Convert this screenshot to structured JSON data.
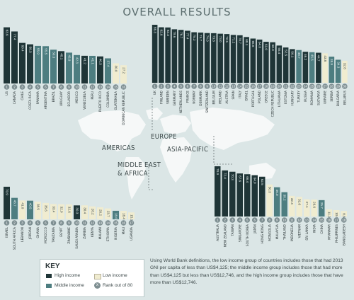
{
  "title": "OVERALL RESULTS",
  "colors": {
    "high": "#1f3537",
    "middle": "#4d7d80",
    "low": "#f0ecd0",
    "rank_circle": "#7e8f92",
    "map": "#ffffff"
  },
  "regions": {
    "americas": "AMERICAS",
    "europe": "EUROPE",
    "asia_pacific": "ASIA-PACIFIC",
    "mea_line1": "MIDDLE EAST",
    "mea_line2": "& AFRICA"
  },
  "legend": {
    "title": "KEY",
    "high": "High income",
    "middle": "Middle income",
    "low": "Low income",
    "rank": "Rank out of 80",
    "rank_symbol": "x"
  },
  "footnote": "Using World Bank definitions, the low income group of countries includes those that had 2013 GNI per capita of less than US$4,125; the middle income group includes those that had more than US$4,125 but less than US$12,746, and the high income group includes those that have more than US$12,746.",
  "chart_data": [
    {
      "type": "bar",
      "region": "Americas",
      "categories": [
        "US",
        "CANADA",
        "CHILE",
        "COSTA RICA",
        "PANAMA",
        "ARGENTINA",
        "BRAZIL",
        "URUGUAY",
        "ECUADOR",
        "MEXICO",
        "VENEZUELA",
        "PERU",
        "PUERTO RICO",
        "COLOMBIA",
        "GUATEMALA",
        "DOMINICAN REPUBLIC"
      ],
      "values": [
        83.6,
        77.4,
        60.4,
        58.3,
        55.9,
        55.5,
        50.3,
        48.1,
        45.9,
        42.3,
        41.2,
        41.1,
        40.3,
        37.4,
        30.0,
        27.2
      ],
      "ranks": [
        1,
        2,
        3,
        4,
        5,
        6,
        7,
        8,
        9,
        10,
        11,
        12,
        13,
        14,
        15,
        16
      ],
      "groups": [
        "high",
        "high",
        "high",
        "high",
        "middle",
        "middle",
        "middle",
        "high",
        "middle",
        "middle",
        "high",
        "middle",
        "high",
        "middle",
        "low",
        "low"
      ],
      "ylim": [
        0,
        100
      ]
    },
    {
      "type": "bar",
      "region": "Europe",
      "categories": [
        "UK",
        "FINLAND",
        "SWEDEN",
        "GERMANY",
        "NETHERLANDS",
        "FRANCE",
        "NORWAY",
        "DENMARK",
        "SWITZERLAND",
        "BELGIUM",
        "IRELAND",
        "AUSTRIA",
        "SPAIN",
        "ITALY",
        "ISRAEL",
        "PORTUGAL",
        "POLAND",
        "GREECE",
        "CZECH REPUBLIC",
        "LITHUANIA",
        "ESTONIA",
        "HUNGARY",
        "TURKEY",
        "RUSSIA",
        "ROMANIA",
        "SLOVAKIA",
        "UKRAINE",
        "SERBIA",
        "BULGARIA",
        "BELARUS"
      ],
      "values": [
        86.3,
        82.6,
        82.3,
        79.6,
        78.7,
        77.4,
        75.2,
        74.7,
        74.0,
        73.8,
        73.0,
        72.5,
        71.2,
        70.7,
        68.1,
        65.8,
        64.3,
        61.0,
        60.3,
        55.4,
        52.5,
        50.1,
        48.7,
        46.2,
        45.5,
        44.7,
        43.8,
        38.9,
        34.3,
        32.8
      ],
      "ranks": [
        1,
        2,
        3,
        4,
        5,
        6,
        7,
        8,
        9,
        10,
        11,
        12,
        13,
        14,
        15,
        16,
        17,
        18,
        19,
        20,
        21,
        22,
        23,
        24,
        25,
        26,
        27,
        28,
        29,
        30
      ],
      "groups": [
        "high",
        "high",
        "high",
        "high",
        "high",
        "high",
        "high",
        "high",
        "high",
        "high",
        "high",
        "high",
        "high",
        "high",
        "high",
        "high",
        "high",
        "high",
        "high",
        "high",
        "high",
        "high",
        "middle",
        "high",
        "middle",
        "high",
        "low",
        "middle",
        "middle",
        "low"
      ],
      "ylim": [
        0,
        100
      ]
    },
    {
      "type": "bar",
      "region": "Middle East & Africa",
      "categories": [
        "ISRAEL",
        "SOUTH AFRICA",
        "LEBANON",
        "JORDAN",
        "GHANA",
        "MOROCCO",
        "TANZANIA",
        "EGYPT",
        "ZIMBABWE",
        "SAUDI ARABIA",
        "ZAMBIA",
        "KENYA",
        "MALAWI",
        "ETHIOPIA",
        "NIGERIA",
        "MALI",
        "UGANDA"
      ],
      "values": [
        70.9,
        46.7,
        41.0,
        40.5,
        38.5,
        35.6,
        33.4,
        32.9,
        32.6,
        30.3,
        30.4,
        28.2,
        26.2,
        23.7,
        18.6,
        18.4,
        15.1
      ],
      "ranks": [
        1,
        2,
        3,
        4,
        5,
        6,
        7,
        8,
        9,
        10,
        11,
        12,
        13,
        14,
        15,
        16,
        17
      ],
      "groups": [
        "high",
        "middle",
        "low",
        "middle",
        "low",
        "low",
        "low",
        "low",
        "low",
        "high",
        "low",
        "low",
        "low",
        "low",
        "middle",
        "low",
        "low"
      ],
      "ylim": [
        0,
        100
      ]
    },
    {
      "type": "bar",
      "region": "Asia-Pacific",
      "categories": [
        "AUSTRALIA",
        "NEW ZEALAND",
        "TAIWAN",
        "SINGAPORE",
        "SOUTH KOREA",
        "JAPAN",
        "HONG KONG",
        "MONGOLIA",
        "MALAYSIA",
        "THAILAND",
        "INDONESIA",
        "VIETNAM",
        "SRI LANKA",
        "INDIA",
        "CHINA",
        "MYANMAR",
        "PHILIPPINES",
        "BANGLADESH"
      ],
      "values": [
        78.9,
        72.4,
        70.3,
        67.6,
        66.4,
        64.9,
        62.5,
        50.3,
        46.0,
        38.2,
        32.4,
        31.0,
        27.1,
        26.6,
        25.7,
        11.2,
        10.0,
        8.6
      ],
      "ranks": [
        1,
        2,
        3,
        4,
        5,
        6,
        7,
        8,
        9,
        10,
        11,
        12,
        13,
        14,
        15,
        16,
        17,
        18
      ],
      "groups": [
        "high",
        "high",
        "high",
        "high",
        "high",
        "high",
        "high",
        "low",
        "middle",
        "middle",
        "low",
        "low",
        "low",
        "low",
        "middle",
        "low",
        "low",
        "low"
      ],
      "ylim": [
        0,
        100
      ]
    }
  ]
}
